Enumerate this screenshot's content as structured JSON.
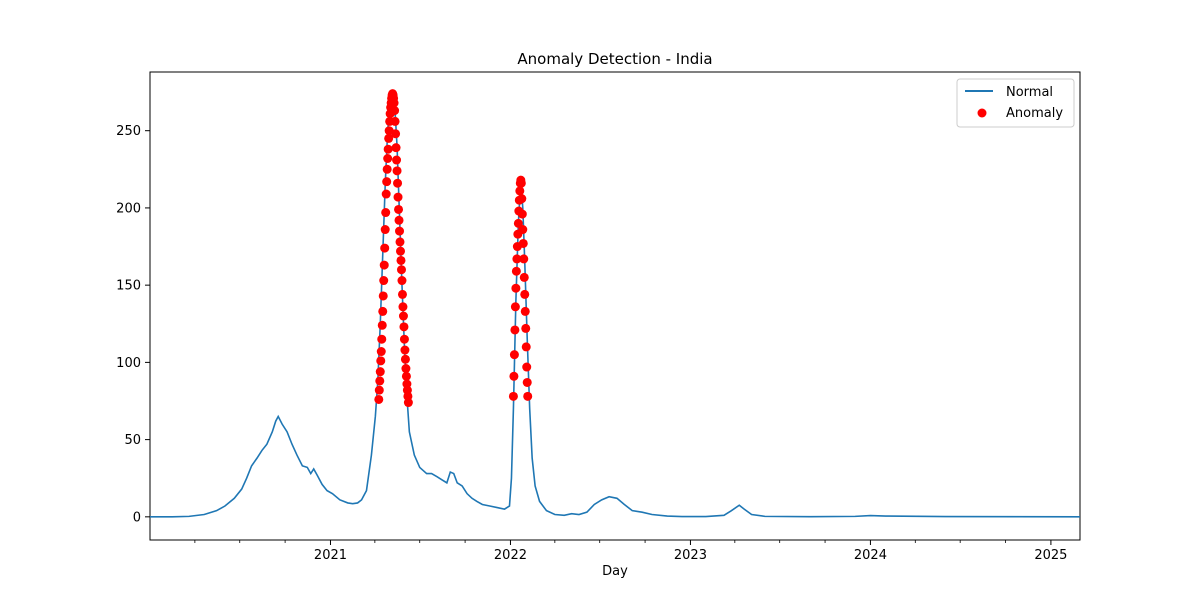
{
  "chart_data": {
    "type": "line",
    "title": "Anomaly Detection - India",
    "xlabel": "Day",
    "ylabel": "",
    "x_axis": {
      "type": "date",
      "range": [
        "2020-01-01",
        "2025-03-01"
      ],
      "major_ticks": [
        "2021-01-01",
        "2022-01-01",
        "2023-01-01",
        "2024-01-01",
        "2025-01-01"
      ],
      "major_tick_labels": [
        "2021",
        "2022",
        "2023",
        "2024",
        "2025"
      ]
    },
    "y_axis": {
      "range": [
        -15,
        288
      ],
      "ticks": [
        0,
        50,
        100,
        150,
        200,
        250
      ],
      "tick_labels": [
        "0",
        "50",
        "100",
        "150",
        "200",
        "250"
      ]
    },
    "grid": false,
    "legend": {
      "position": "top-right",
      "entries": [
        {
          "label": "Normal",
          "marker": "line",
          "color": "#1f77b4"
        },
        {
          "label": "Anomaly",
          "marker": "dot",
          "color": "#ff0000"
        }
      ]
    },
    "series": [
      {
        "name": "Normal",
        "style": "line",
        "color": "#1f77b4",
        "points": [
          [
            "2020-01-01",
            0
          ],
          [
            "2020-02-15",
            0
          ],
          [
            "2020-03-20",
            0.3
          ],
          [
            "2020-04-20",
            1.5
          ],
          [
            "2020-05-15",
            4
          ],
          [
            "2020-06-01",
            7
          ],
          [
            "2020-06-20",
            12
          ],
          [
            "2020-07-05",
            18
          ],
          [
            "2020-07-15",
            25
          ],
          [
            "2020-07-25",
            33
          ],
          [
            "2020-08-05",
            38
          ],
          [
            "2020-08-15",
            43
          ],
          [
            "2020-08-25",
            47
          ],
          [
            "2020-09-05",
            55
          ],
          [
            "2020-09-12",
            62
          ],
          [
            "2020-09-17",
            65
          ],
          [
            "2020-09-25",
            60
          ],
          [
            "2020-10-05",
            55
          ],
          [
            "2020-10-15",
            47
          ],
          [
            "2020-10-25",
            40
          ],
          [
            "2020-11-05",
            33
          ],
          [
            "2020-11-15",
            32
          ],
          [
            "2020-11-22",
            28
          ],
          [
            "2020-11-28",
            31
          ],
          [
            "2020-12-05",
            27
          ],
          [
            "2020-12-15",
            21
          ],
          [
            "2020-12-25",
            17
          ],
          [
            "2021-01-05",
            15
          ],
          [
            "2021-01-20",
            11
          ],
          [
            "2021-02-05",
            9
          ],
          [
            "2021-02-15",
            8.5
          ],
          [
            "2021-02-25",
            9
          ],
          [
            "2021-03-05",
            11
          ],
          [
            "2021-03-15",
            17
          ],
          [
            "2021-03-25",
            40
          ],
          [
            "2021-04-02",
            65
          ],
          [
            "2021-04-07",
            88
          ],
          [
            "2021-04-12",
            125
          ],
          [
            "2021-04-17",
            170
          ],
          [
            "2021-04-22",
            215
          ],
          [
            "2021-04-27",
            250
          ],
          [
            "2021-05-02",
            268
          ],
          [
            "2021-05-07",
            274
          ],
          [
            "2021-05-11",
            268
          ],
          [
            "2021-05-16",
            240
          ],
          [
            "2021-05-21",
            195
          ],
          [
            "2021-05-26",
            150
          ],
          [
            "2021-05-31",
            110
          ],
          [
            "2021-06-05",
            78
          ],
          [
            "2021-06-10",
            55
          ],
          [
            "2021-06-20",
            40
          ],
          [
            "2021-07-01",
            32
          ],
          [
            "2021-07-15",
            28
          ],
          [
            "2021-07-25",
            28
          ],
          [
            "2021-08-05",
            26
          ],
          [
            "2021-08-15",
            24
          ],
          [
            "2021-08-25",
            22
          ],
          [
            "2021-09-01",
            29
          ],
          [
            "2021-09-08",
            28
          ],
          [
            "2021-09-15",
            22
          ],
          [
            "2021-09-25",
            20
          ],
          [
            "2021-10-05",
            15
          ],
          [
            "2021-10-15",
            12
          ],
          [
            "2021-10-25",
            10
          ],
          [
            "2021-11-05",
            8
          ],
          [
            "2021-11-20",
            7
          ],
          [
            "2021-12-05",
            6
          ],
          [
            "2021-12-20",
            5
          ],
          [
            "2021-12-30",
            7
          ],
          [
            "2022-01-03",
            25
          ],
          [
            "2022-01-07",
            70
          ],
          [
            "2022-01-12",
            140
          ],
          [
            "2022-01-17",
            190
          ],
          [
            "2022-01-22",
            218
          ],
          [
            "2022-01-26",
            200
          ],
          [
            "2022-01-30",
            165
          ],
          [
            "2022-02-04",
            115
          ],
          [
            "2022-02-09",
            70
          ],
          [
            "2022-02-14",
            38
          ],
          [
            "2022-02-20",
            20
          ],
          [
            "2022-03-01",
            10
          ],
          [
            "2022-03-15",
            4
          ],
          [
            "2022-04-01",
            1.5
          ],
          [
            "2022-04-20",
            1
          ],
          [
            "2022-05-05",
            2
          ],
          [
            "2022-05-20",
            1.5
          ],
          [
            "2022-06-05",
            3
          ],
          [
            "2022-06-20",
            8
          ],
          [
            "2022-07-05",
            11
          ],
          [
            "2022-07-20",
            13
          ],
          [
            "2022-08-05",
            12
          ],
          [
            "2022-08-20",
            8
          ],
          [
            "2022-09-05",
            4
          ],
          [
            "2022-09-25",
            3
          ],
          [
            "2022-10-15",
            1.5
          ],
          [
            "2022-11-15",
            0.5
          ],
          [
            "2022-12-15",
            0.2
          ],
          [
            "2023-02-01",
            0.2
          ],
          [
            "2023-03-10",
            1
          ],
          [
            "2023-03-25",
            4
          ],
          [
            "2023-04-10",
            7.5
          ],
          [
            "2023-04-20",
            5
          ],
          [
            "2023-05-05",
            1.5
          ],
          [
            "2023-06-01",
            0.3
          ],
          [
            "2023-09-01",
            0.1
          ],
          [
            "2023-12-01",
            0.3
          ],
          [
            "2024-01-01",
            0.8
          ],
          [
            "2024-02-01",
            0.5
          ],
          [
            "2024-06-01",
            0.2
          ],
          [
            "2025-03-01",
            0
          ]
        ]
      },
      {
        "name": "Anomaly",
        "style": "scatter",
        "color": "#ff0000",
        "points": [
          [
            "2021-04-09",
            76
          ],
          [
            "2021-04-10",
            82
          ],
          [
            "2021-04-11",
            88
          ],
          [
            "2021-04-12",
            94
          ],
          [
            "2021-04-13",
            101
          ],
          [
            "2021-04-14",
            107
          ],
          [
            "2021-04-15",
            115
          ],
          [
            "2021-04-16",
            124
          ],
          [
            "2021-04-17",
            133
          ],
          [
            "2021-04-18",
            143
          ],
          [
            "2021-04-19",
            153
          ],
          [
            "2021-04-20",
            163
          ],
          [
            "2021-04-21",
            174
          ],
          [
            "2021-04-22",
            186
          ],
          [
            "2021-04-23",
            197
          ],
          [
            "2021-04-24",
            209
          ],
          [
            "2021-04-25",
            217
          ],
          [
            "2021-04-26",
            225
          ],
          [
            "2021-04-27",
            232
          ],
          [
            "2021-04-28",
            238
          ],
          [
            "2021-04-29",
            245
          ],
          [
            "2021-04-30",
            250
          ],
          [
            "2021-05-01",
            256
          ],
          [
            "2021-05-02",
            261
          ],
          [
            "2021-05-03",
            265
          ],
          [
            "2021-05-04",
            268
          ],
          [
            "2021-05-05",
            271
          ],
          [
            "2021-05-06",
            273
          ],
          [
            "2021-05-07",
            274
          ],
          [
            "2021-05-08",
            273
          ],
          [
            "2021-05-09",
            271
          ],
          [
            "2021-05-10",
            268
          ],
          [
            "2021-05-11",
            263
          ],
          [
            "2021-05-12",
            256
          ],
          [
            "2021-05-13",
            248
          ],
          [
            "2021-05-14",
            239
          ],
          [
            "2021-05-15",
            231
          ],
          [
            "2021-05-16",
            224
          ],
          [
            "2021-05-17",
            216
          ],
          [
            "2021-05-18",
            207
          ],
          [
            "2021-05-19",
            199
          ],
          [
            "2021-05-20",
            192
          ],
          [
            "2021-05-21",
            185
          ],
          [
            "2021-05-22",
            178
          ],
          [
            "2021-05-23",
            172
          ],
          [
            "2021-05-24",
            166
          ],
          [
            "2021-05-25",
            160
          ],
          [
            "2021-05-26",
            153
          ],
          [
            "2021-05-27",
            144
          ],
          [
            "2021-05-28",
            136
          ],
          [
            "2021-05-29",
            130
          ],
          [
            "2021-05-30",
            123
          ],
          [
            "2021-05-31",
            115
          ],
          [
            "2021-06-01",
            108
          ],
          [
            "2021-06-02",
            102
          ],
          [
            "2021-06-03",
            96
          ],
          [
            "2021-06-04",
            91
          ],
          [
            "2021-06-05",
            86
          ],
          [
            "2021-06-06",
            82
          ],
          [
            "2021-06-07",
            78
          ],
          [
            "2021-06-08",
            74
          ],
          [
            "2022-01-07",
            78
          ],
          [
            "2022-01-08",
            91
          ],
          [
            "2022-01-09",
            105
          ],
          [
            "2022-01-10",
            121
          ],
          [
            "2022-01-11",
            136
          ],
          [
            "2022-01-12",
            148
          ],
          [
            "2022-01-13",
            159
          ],
          [
            "2022-01-14",
            167
          ],
          [
            "2022-01-15",
            175
          ],
          [
            "2022-01-16",
            183
          ],
          [
            "2022-01-17",
            190
          ],
          [
            "2022-01-18",
            198
          ],
          [
            "2022-01-19",
            205
          ],
          [
            "2022-01-20",
            211
          ],
          [
            "2022-01-21",
            216
          ],
          [
            "2022-01-22",
            218
          ],
          [
            "2022-01-23",
            216
          ],
          [
            "2022-01-24",
            206
          ],
          [
            "2022-01-25",
            196
          ],
          [
            "2022-01-26",
            186
          ],
          [
            "2022-01-27",
            177
          ],
          [
            "2022-01-28",
            167
          ],
          [
            "2022-01-29",
            155
          ],
          [
            "2022-01-30",
            144
          ],
          [
            "2022-01-31",
            133
          ],
          [
            "2022-02-01",
            122
          ],
          [
            "2022-02-02",
            110
          ],
          [
            "2022-02-03",
            97
          ],
          [
            "2022-02-04",
            87
          ],
          [
            "2022-02-05",
            78
          ]
        ]
      }
    ]
  }
}
